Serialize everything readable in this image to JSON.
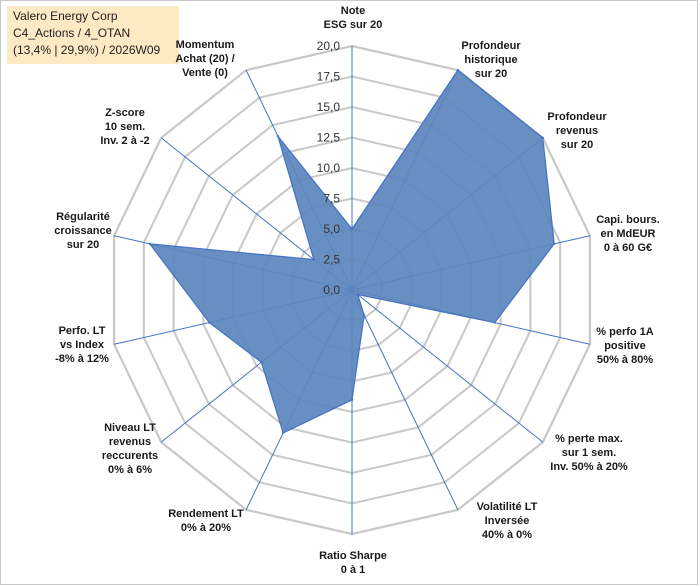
{
  "header": {
    "line1": "Valero Energy Corp",
    "line2": "C4_Actions / 4_OTAN",
    "line3": "(13,4% | 29,9%) / 2026W09"
  },
  "colors": {
    "fill": "#5b85bd",
    "stroke": "#4472c4",
    "grid": "#c8c8c8"
  },
  "chart_data": {
    "type": "radar",
    "rlim": [
      0,
      20
    ],
    "ticks": [
      "0,0",
      "2,5",
      "5,0",
      "7,5",
      "10,0",
      "12,5",
      "15,0",
      "17,5",
      "20,0"
    ],
    "grid": true,
    "axes": [
      {
        "label": [
          "Note",
          "ESG sur 20"
        ],
        "value": 5.0
      },
      {
        "label": [
          "Profondeur",
          "historique",
          "sur 20"
        ],
        "value": 20.0
      },
      {
        "label": [
          "Profondeur",
          "revenus",
          "sur 20"
        ],
        "value": 20.0
      },
      {
        "label": [
          "Capi. bours.",
          "en MdEUR",
          "0 à 60 G€"
        ],
        "value": 17.0
      },
      {
        "label": [
          "% perfo 1A",
          "positive",
          "50% à 80%"
        ],
        "value": 12.0
      },
      {
        "label": [
          "% perte max.",
          "sur 1 sem.",
          "Inv. 50% à 20%"
        ],
        "value": 0.6
      },
      {
        "label": [
          "Volatilité LT",
          "Inversée",
          "40% à 0%"
        ],
        "value": 2.3
      },
      {
        "label": [
          "Ratio Sharpe",
          "0 à 1"
        ],
        "value": 9.0
      },
      {
        "label": [
          "Rendement LT",
          "0% à 20%"
        ],
        "value": 13.0
      },
      {
        "label": [
          "Niveau LT",
          "revenus",
          "reccurents",
          "0% à 6%"
        ],
        "value": 9.5
      },
      {
        "label": [
          "Perfo. LT",
          "vs Index",
          "-8% à 12%"
        ],
        "value": 12.0
      },
      {
        "label": [
          "Régularité",
          "croissance",
          "sur 20"
        ],
        "value": 17.0
      },
      {
        "label": [
          "Z-score",
          "10 sem.",
          "Inv. 2 à -2"
        ],
        "value": 4.0
      },
      {
        "label": [
          "Momentum",
          "Achat (20) /",
          "Vente (0)"
        ],
        "value": 14.0
      }
    ]
  }
}
